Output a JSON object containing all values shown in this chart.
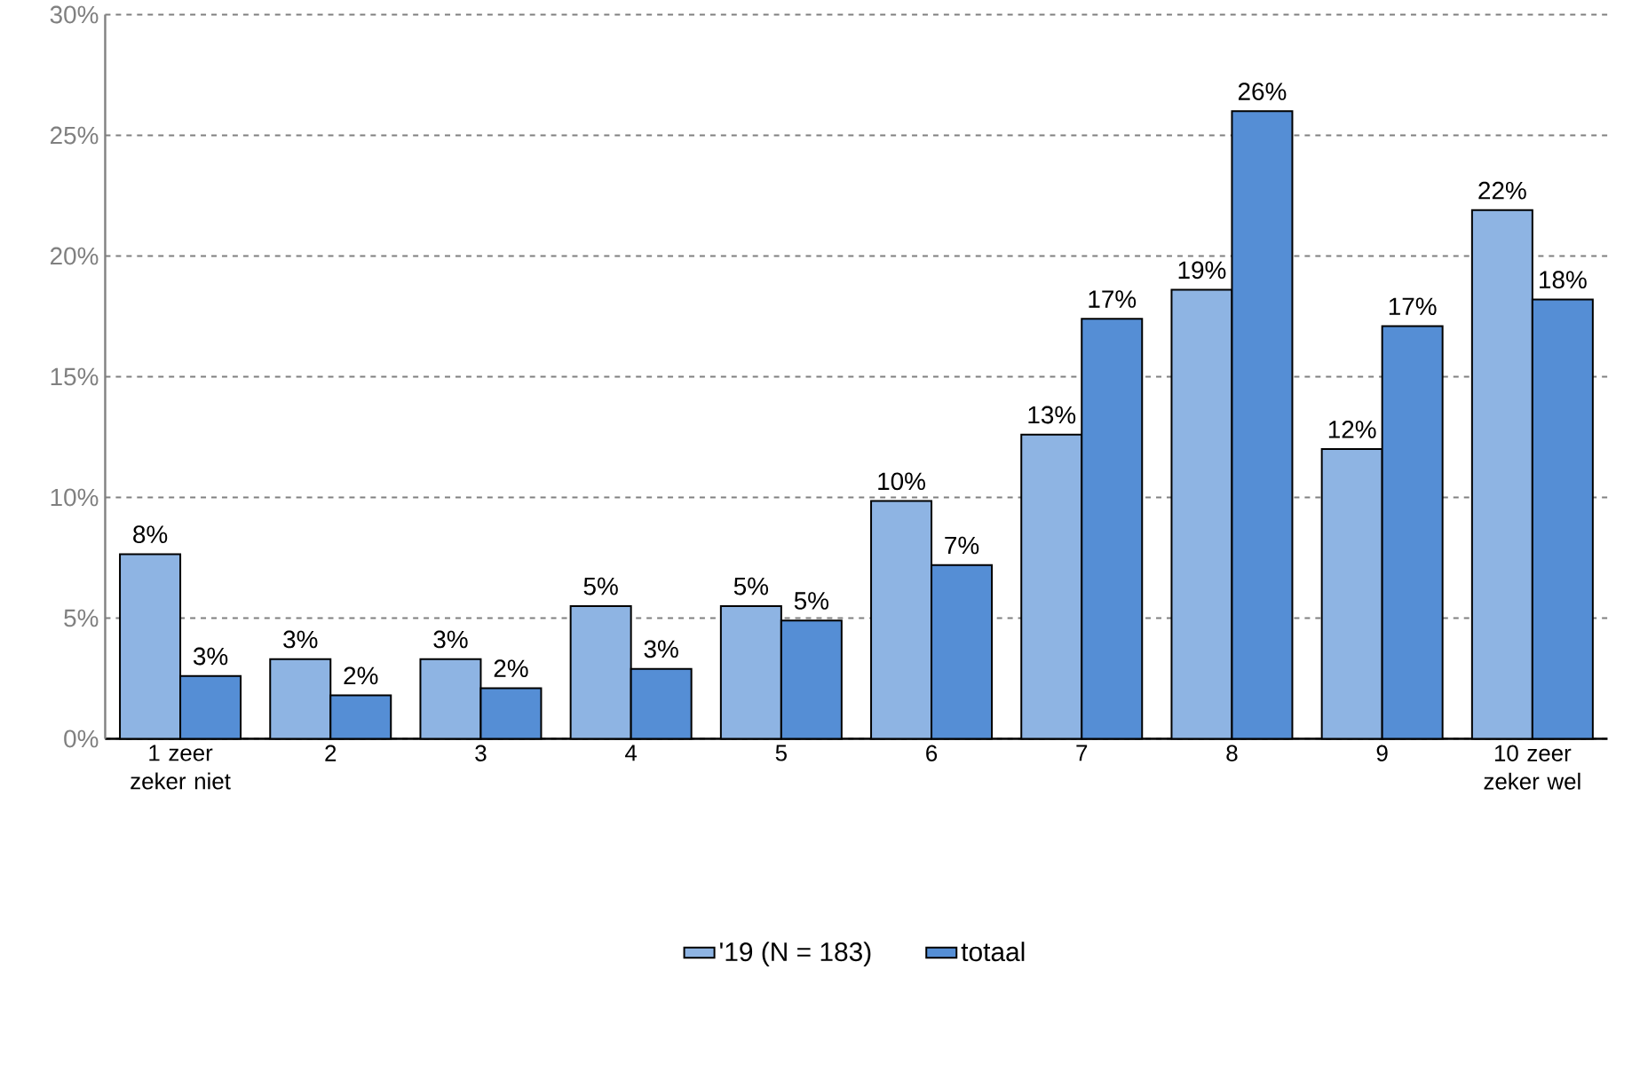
{
  "chart_data": {
    "type": "bar",
    "categories": [
      "1 zeer zeker niet",
      "2",
      "3",
      "4",
      "5",
      "6",
      "7",
      "8",
      "9",
      "10 zeer zeker wel"
    ],
    "series": [
      {
        "name": "'19 (N = 183)",
        "color": "#8eb4e3",
        "values": [
          7.65,
          3.3,
          3.3,
          5.5,
          5.5,
          9.85,
          12.6,
          18.6,
          12.0,
          21.9
        ],
        "value_labels": [
          "8%",
          "3%",
          "3%",
          "5%",
          "5%",
          "10%",
          "13%",
          "19%",
          "12%",
          "22%"
        ]
      },
      {
        "name": "totaal",
        "color": "#558ed5",
        "values": [
          2.6,
          1.8,
          2.1,
          2.9,
          4.9,
          7.2,
          17.4,
          26.0,
          17.1,
          18.2
        ],
        "value_labels": [
          "3%",
          "2%",
          "2%",
          "3%",
          "5%",
          "7%",
          "17%",
          "26%",
          "17%",
          "18%"
        ]
      }
    ],
    "ylim": [
      0,
      30
    ],
    "yticks": [
      {
        "value": 0,
        "label": "0%"
      },
      {
        "value": 5,
        "label": "5%"
      },
      {
        "value": 10,
        "label": "10%"
      },
      {
        "value": 15,
        "label": "15%"
      },
      {
        "value": 20,
        "label": "20%"
      },
      {
        "value": 25,
        "label": "25%"
      },
      {
        "value": 30,
        "label": "30%"
      }
    ],
    "grid": "y",
    "legend": "bottom"
  }
}
